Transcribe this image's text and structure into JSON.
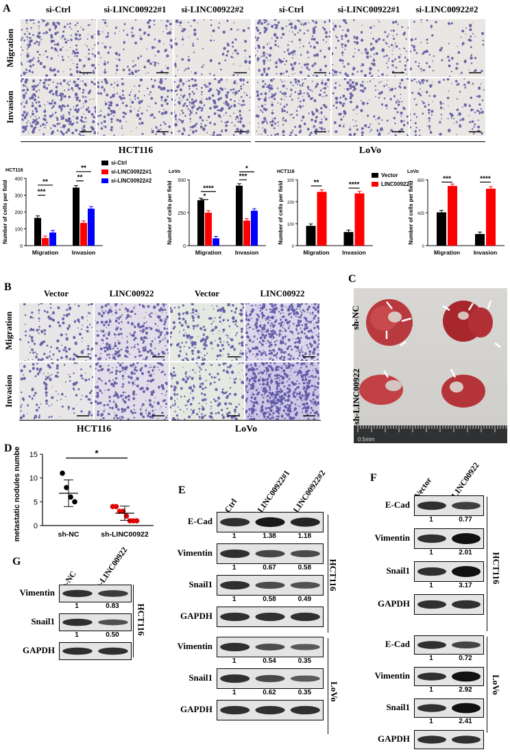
{
  "panelA": {
    "label": "A",
    "cols": [
      "si-Ctrl",
      "si-LINC00922#1",
      "si-LINC00922#2",
      "si-Ctrl",
      "si-LINC00922#1",
      "si-LINC00922#2"
    ],
    "rows": [
      "Migration",
      "Invasion"
    ],
    "groups": [
      "HCT116",
      "LoVo"
    ]
  },
  "panelB": {
    "label": "B",
    "cols": [
      "Vector",
      "LINC00922",
      "Vector",
      "LINC00922"
    ],
    "rows": [
      "Migration",
      "Invasion"
    ],
    "groups": [
      "HCT116",
      "LoVo"
    ]
  },
  "panelC": {
    "label": "C",
    "rows": [
      "sh-NC",
      "sh-LINC00922"
    ],
    "ruler": "0.5mm"
  },
  "panelD": {
    "label": "D"
  },
  "panelE": {
    "label": "E",
    "cols": [
      "si-Ctrl",
      "si-LINC00922#1",
      "si-LINC00922#2"
    ],
    "hct": {
      "name": "HCT116",
      "bands": [
        {
          "name": "E-Cad",
          "vals": [
            "1",
            "1.38",
            "1.18"
          ]
        },
        {
          "name": "Vimentin",
          "vals": [
            "1",
            "0.67",
            "0.58"
          ]
        },
        {
          "name": "Snail1",
          "vals": [
            "1",
            "0.58",
            "0.49"
          ]
        },
        {
          "name": "GAPDH",
          "vals": []
        }
      ]
    },
    "lovo": {
      "name": "LoVo",
      "bands": [
        {
          "name": "Vimentin",
          "vals": [
            "1",
            "0.54",
            "0.35"
          ]
        },
        {
          "name": "Snail1",
          "vals": [
            "1",
            "0.62",
            "0.35"
          ]
        },
        {
          "name": "GAPDH",
          "vals": []
        }
      ]
    }
  },
  "panelF": {
    "label": "F",
    "cols": [
      "Vector",
      "LINC00922"
    ],
    "hct": {
      "name": "HCT116",
      "bands": [
        {
          "name": "E-Cad",
          "vals": [
            "1",
            "0.77"
          ]
        },
        {
          "name": "Vimentin",
          "vals": [
            "1",
            "2.01"
          ]
        },
        {
          "name": "Snail1",
          "vals": [
            "1",
            "3.17"
          ]
        },
        {
          "name": "GAPDH",
          "vals": []
        }
      ]
    },
    "lovo": {
      "name": "LoVo",
      "bands": [
        {
          "name": "E-Cad",
          "vals": [
            "1",
            "0.72"
          ]
        },
        {
          "name": "Vimentin",
          "vals": [
            "1",
            "2.92"
          ]
        },
        {
          "name": "Snail1",
          "vals": [
            "1",
            "2.41"
          ]
        },
        {
          "name": "GAPDH",
          "vals": []
        }
      ]
    }
  },
  "panelG": {
    "label": "G",
    "cols": [
      "sh-NC",
      "sh-LINC00922"
    ],
    "group": "HCT116",
    "bands": [
      {
        "name": "Vimentin",
        "vals": [
          "1",
          "0.83"
        ]
      },
      {
        "name": "Snail1",
        "vals": [
          "1",
          "0.50"
        ]
      },
      {
        "name": "GAPDH",
        "vals": []
      }
    ]
  },
  "chart_data": [
    {
      "type": "bar",
      "title": "HCT116",
      "ylabel": "Number of cells per field",
      "ylim": [
        0,
        400
      ],
      "yticks": [
        "0",
        "100",
        "200",
        "300",
        "400"
      ],
      "categories": [
        "Migration",
        "Invasion"
      ],
      "series": [
        {
          "name": "si-Ctrl",
          "color": "#000000",
          "values": [
            165,
            345
          ]
        },
        {
          "name": "si-LINC00922#1",
          "color": "#ff0000",
          "values": [
            45,
            135
          ]
        },
        {
          "name": "si-LINC00922#2",
          "color": "#0000ff",
          "values": [
            78,
            220
          ]
        }
      ],
      "annotations": [
        "***",
        "**",
        "**",
        "**"
      ],
      "legend": "right"
    },
    {
      "type": "bar",
      "title": "LoVo",
      "ylabel": "Number of cells per field",
      "ylim": [
        0,
        500
      ],
      "yticks": [
        "0",
        "250",
        "500"
      ],
      "categories": [
        "Migration",
        "Invasion"
      ],
      "series": [
        {
          "name": "si-Ctrl",
          "color": "#000000",
          "values": [
            345,
            455
          ]
        },
        {
          "name": "si-LINC00922#1",
          "color": "#ff0000",
          "values": [
            250,
            190
          ]
        },
        {
          "name": "si-LINC00922#2",
          "color": "#0000ff",
          "values": [
            55,
            265
          ]
        }
      ],
      "annotations": [
        "****",
        "*",
        "*",
        "***"
      ]
    },
    {
      "type": "bar",
      "title": "HCT116",
      "ylabel": "Number of cells per field",
      "ylim": [
        0,
        300
      ],
      "yticks": [
        "0",
        "100",
        "200",
        "300"
      ],
      "categories": [
        "Migration",
        "Invasion"
      ],
      "series": [
        {
          "name": "Vector",
          "color": "#000000",
          "values": [
            90,
            62
          ]
        },
        {
          "name": "LINC00922",
          "color": "#ff0000",
          "values": [
            245,
            238
          ]
        }
      ],
      "annotations": [
        "**",
        "****"
      ],
      "legend": "right"
    },
    {
      "type": "bar",
      "title": "LoVo",
      "ylabel": "Number of cells per field",
      "ylim": [
        0,
        850
      ],
      "yticks": [
        "0",
        "425",
        "850"
      ],
      "categories": [
        "Migration",
        "Invasion"
      ],
      "series": [
        {
          "name": "Vector",
          "color": "#000000",
          "values": [
            430,
            150
          ]
        },
        {
          "name": "LINC00922",
          "color": "#ff0000",
          "values": [
            770,
            735
          ]
        }
      ],
      "annotations": [
        "***",
        "****"
      ]
    },
    {
      "type": "scatter",
      "ylabel": "metastatic nodules number",
      "ylim": [
        0,
        15
      ],
      "yticks": [
        "0",
        "5",
        "10",
        "15"
      ],
      "categories": [
        "sh-NC",
        "sh-LINC00922"
      ],
      "series": [
        {
          "name": "sh-NC",
          "color": "#000000",
          "values": [
            11,
            8,
            6,
            5
          ],
          "mean": 6.8,
          "sd": 2.8
        },
        {
          "name": "sh-LINC00922",
          "color": "#e00000",
          "values": [
            4,
            4,
            3,
            3,
            2,
            1,
            1,
            1
          ],
          "mean": 2.6,
          "sd": 1.5
        }
      ],
      "annotations": [
        "*"
      ]
    }
  ]
}
